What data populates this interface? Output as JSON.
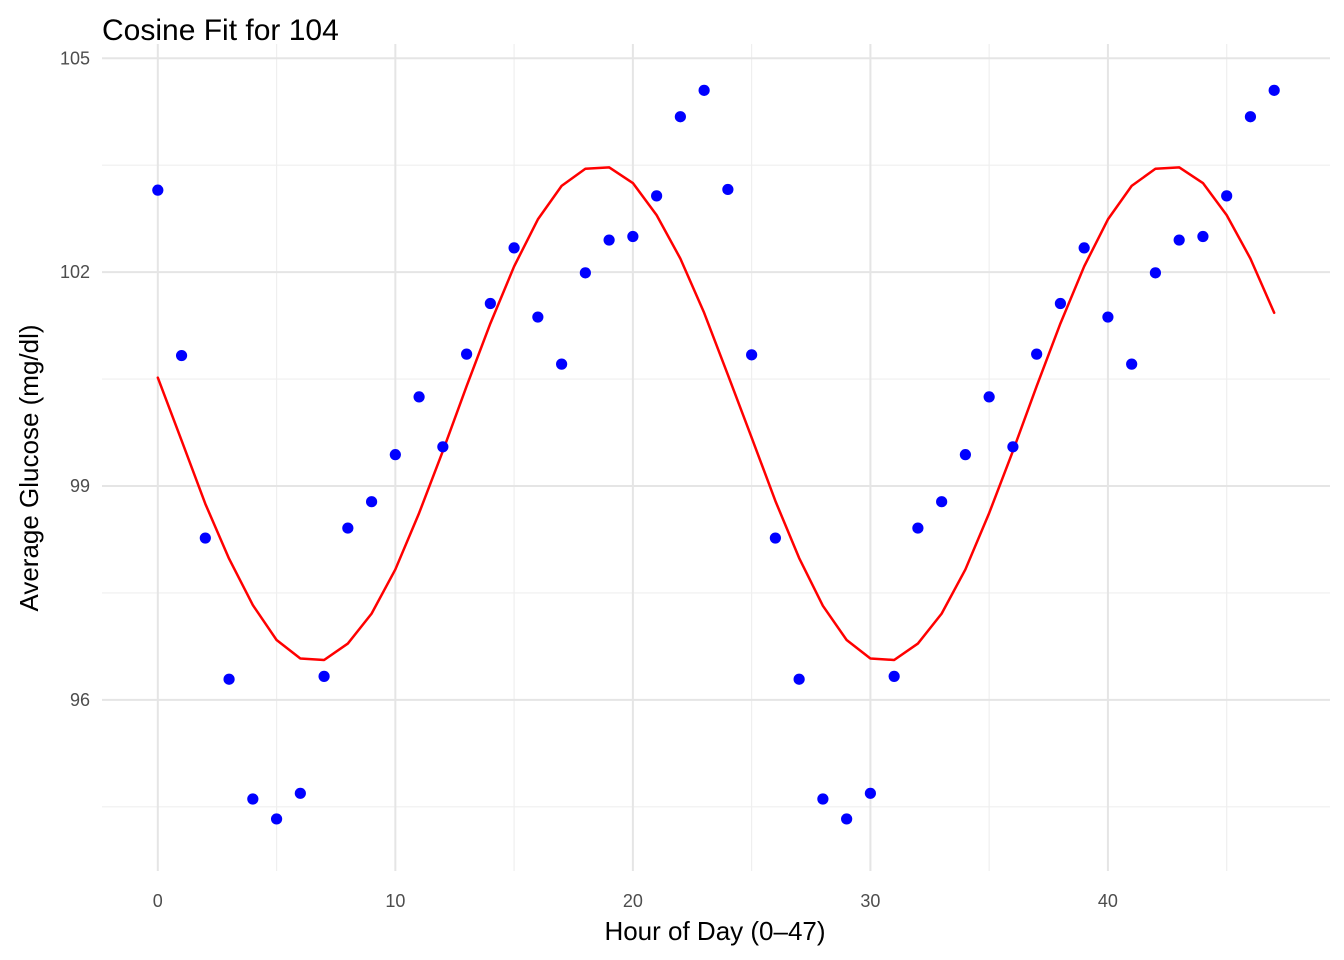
{
  "chart_data": {
    "type": "scatter",
    "title": "Cosine Fit for 104",
    "xlabel": "Hour of Day (0–47)",
    "ylabel": "Average Glucose (mg/dl)",
    "xlim": [
      -2.35,
      49.35
    ],
    "ylim": [
      93.6,
      105.2
    ],
    "x_ticks": [
      0,
      10,
      20,
      30,
      40
    ],
    "x_minor_ticks": [
      5,
      15,
      25,
      35,
      45
    ],
    "y_ticks": [
      96,
      99,
      102,
      105
    ],
    "y_minor_ticks": [
      94.5,
      97.5,
      100.5,
      103.5
    ],
    "x_tick_labels": [
      "0",
      "10",
      "20",
      "30",
      "40"
    ],
    "y_tick_labels": [
      "96",
      "99",
      "102",
      "105"
    ],
    "grid": true,
    "legend": "none",
    "colors": {
      "points": "#0000ff",
      "fit_line": "#ff0000",
      "grid_major": "#e5e5e5",
      "grid_minor": "#efefef",
      "tick_text": "#4d4d4d",
      "text": "#000000",
      "background": "#ffffff"
    },
    "series": [
      {
        "type": "scatter",
        "x": [
          0,
          1,
          2,
          3,
          4,
          5,
          6,
          7,
          8,
          9,
          10,
          11,
          12,
          13,
          14,
          15,
          16,
          17,
          18,
          19,
          20,
          21,
          22,
          23,
          24,
          25,
          26,
          27,
          28,
          29,
          30,
          31,
          32,
          33,
          34,
          35,
          36,
          37,
          38,
          39,
          40,
          41,
          42,
          43,
          44,
          45,
          46,
          47
        ],
        "values": [
          103.15,
          100.83,
          98.27,
          96.29,
          94.61,
          94.33,
          94.69,
          96.33,
          98.41,
          98.78,
          99.44,
          100.25,
          99.55,
          100.85,
          101.56,
          102.34,
          101.37,
          100.71,
          101.99,
          102.45,
          102.5,
          103.07,
          104.18,
          104.55,
          103.16,
          100.84,
          98.27,
          96.29,
          94.61,
          94.33,
          94.69,
          96.33,
          98.41,
          98.78,
          99.44,
          100.25,
          99.55,
          100.85,
          101.56,
          102.34,
          101.37,
          100.71,
          101.99,
          102.45,
          102.5,
          103.07,
          104.18,
          104.55
        ]
      },
      {
        "type": "line",
        "x": [
          0,
          1,
          2,
          3,
          4,
          5,
          6,
          7,
          8,
          9,
          10,
          11,
          12,
          13,
          14,
          15,
          16,
          17,
          18,
          19,
          20,
          21,
          22,
          23,
          24,
          25,
          26,
          27,
          28,
          29,
          30,
          31,
          32,
          33,
          34,
          35,
          36,
          37,
          38,
          39,
          40,
          41,
          42,
          43,
          44,
          45,
          46,
          47
        ],
        "values": [
          100.52,
          99.64,
          98.75,
          97.98,
          97.33,
          96.84,
          96.58,
          96.56,
          96.79,
          97.21,
          97.83,
          98.62,
          99.49,
          100.4,
          101.28,
          102.08,
          102.74,
          103.21,
          103.45,
          103.47,
          103.25,
          102.8,
          102.19,
          101.43,
          100.56,
          99.68,
          98.79,
          97.99,
          97.32,
          96.84,
          96.58,
          96.56,
          96.79,
          97.21,
          97.83,
          98.62,
          99.49,
          100.4,
          101.28,
          102.08,
          102.74,
          103.21,
          103.45,
          103.47,
          103.25,
          102.8,
          102.19,
          101.43
        ]
      }
    ]
  }
}
